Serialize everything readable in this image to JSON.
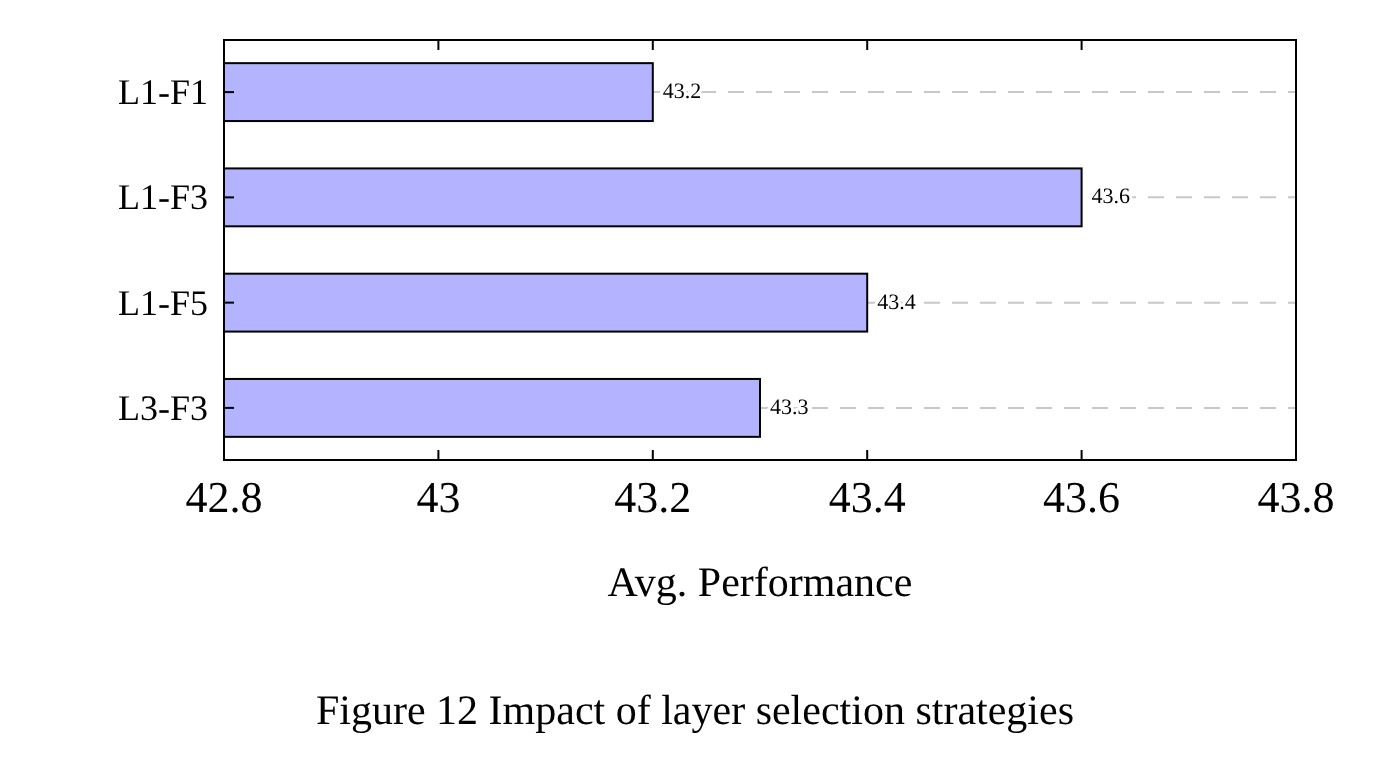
{
  "chart_data": {
    "type": "bar",
    "orientation": "horizontal",
    "categories": [
      "L1-F1",
      "L1-F3",
      "L1-F5",
      "L3-F3"
    ],
    "values": [
      43.2,
      43.6,
      43.4,
      43.3
    ],
    "color": "#b3b3ff",
    "xlim": [
      42.8,
      43.8
    ],
    "xticks": [
      42.8,
      43,
      43.2,
      43.4,
      43.6,
      43.8
    ],
    "xlabel": "Avg. Performance",
    "grid": "y",
    "data_labels": true,
    "annotations": [
      "Figure 12  Impact of layer selection strategies"
    ]
  }
}
